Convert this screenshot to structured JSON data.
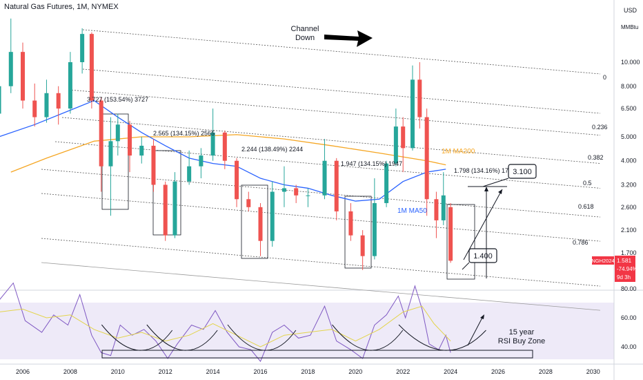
{
  "chart_data": {
    "type": "candlestick",
    "title": "Natural Gas Futures, 1M, NYMEX",
    "ticker": "NGH2024",
    "price_axis": {
      "unit_top": "USD",
      "unit_sub": "MMBtu",
      "scale": "log",
      "ticks": [
        "10.000",
        "8.000",
        "6.500",
        "5.000",
        "4.000",
        "3.200",
        "2.600",
        "2.100",
        "1.700"
      ]
    },
    "time_axis": {
      "ticks": [
        "2006",
        "2008",
        "2010",
        "2012",
        "2014",
        "2016",
        "2018",
        "2020",
        "2022",
        "2024",
        "2026",
        "2028",
        "2030"
      ]
    },
    "rsi_axis": {
      "ticks": [
        "80.00",
        "60.00",
        "40.00"
      ]
    },
    "last_price": {
      "label": "NGH2024",
      "value": "1.581",
      "change": "-74.94%",
      "countdown": "9d 3h",
      "color": "#f23645"
    },
    "fib_levels": [
      {
        "label": "0",
        "price": 8.7
      },
      {
        "label": "0.236",
        "price": 5.45
      },
      {
        "label": "0.382",
        "price": 4.05
      },
      {
        "label": "0.5",
        "price": 3.2
      },
      {
        "label": "0.618",
        "price": 2.62
      },
      {
        "label": "0.786",
        "price": 1.85
      }
    ],
    "annotations": {
      "channel": [
        "Channel",
        "Down"
      ],
      "ma200_label": "1M MA200",
      "ma50_label": "1M MA50",
      "target_label": "3.100",
      "low_label": "1.400",
      "rsi_zone": [
        "15 year",
        "RSI Buy Zone"
      ],
      "moves": [
        "3.727 (153.54%) 3727",
        "2.565 (134.15%) 2565",
        "2.244 (138.49%) 2244",
        "1.947 (134.15%) 1947",
        "1.798 (134.16%) 1798"
      ]
    },
    "colors": {
      "up": "#26a69a",
      "down": "#ef5350",
      "ma200": "#f5a623",
      "ma50": "#2962ff",
      "rsi": "#7e57c2",
      "rsi_ma": "#e3d44b",
      "channel": "#555555"
    },
    "candles": [
      {
        "x": 2005.0,
        "o": 6.2,
        "c": 8.0,
        "h": 9.5,
        "l": 5.8
      },
      {
        "x": 2005.5,
        "o": 8.0,
        "c": 11.0,
        "h": 15.0,
        "l": 7.5
      },
      {
        "x": 2006.0,
        "o": 11.0,
        "c": 7.0,
        "h": 12.0,
        "l": 6.5
      },
      {
        "x": 2006.5,
        "o": 7.0,
        "c": 6.0,
        "h": 8.2,
        "l": 5.5
      },
      {
        "x": 2007.0,
        "o": 6.0,
        "c": 7.5,
        "h": 8.5,
        "l": 5.7
      },
      {
        "x": 2007.5,
        "o": 7.5,
        "c": 6.5,
        "h": 8.0,
        "l": 5.6
      },
      {
        "x": 2008.0,
        "o": 6.5,
        "c": 10.0,
        "h": 11.0,
        "l": 6.2
      },
      {
        "x": 2008.5,
        "o": 10.0,
        "c": 13.0,
        "h": 13.7,
        "l": 9.0
      },
      {
        "x": 2008.9,
        "o": 13.0,
        "c": 7.0,
        "h": 13.2,
        "l": 6.5
      },
      {
        "x": 2009.3,
        "o": 7.0,
        "c": 3.8,
        "h": 7.2,
        "l": 3.0
      },
      {
        "x": 2009.7,
        "o": 3.8,
        "c": 4.8,
        "h": 6.0,
        "l": 2.4
      },
      {
        "x": 2010.0,
        "o": 4.8,
        "c": 5.6,
        "h": 6.2,
        "l": 4.2
      },
      {
        "x": 2010.5,
        "o": 5.6,
        "c": 4.2,
        "h": 5.8,
        "l": 3.6
      },
      {
        "x": 2011.0,
        "o": 4.2,
        "c": 4.6,
        "h": 5.0,
        "l": 3.9
      },
      {
        "x": 2011.5,
        "o": 4.6,
        "c": 3.2,
        "h": 4.9,
        "l": 3.0
      },
      {
        "x": 2012.0,
        "o": 3.2,
        "c": 2.0,
        "h": 3.3,
        "l": 1.9
      },
      {
        "x": 2012.4,
        "o": 2.0,
        "c": 3.3,
        "h": 3.6,
        "l": 1.95
      },
      {
        "x": 2013.0,
        "o": 3.3,
        "c": 3.8,
        "h": 4.4,
        "l": 3.2
      },
      {
        "x": 2013.5,
        "o": 3.8,
        "c": 4.2,
        "h": 4.5,
        "l": 3.4
      },
      {
        "x": 2014.0,
        "o": 4.2,
        "c": 5.2,
        "h": 6.5,
        "l": 4.0
      },
      {
        "x": 2014.5,
        "o": 5.2,
        "c": 4.0,
        "h": 5.3,
        "l": 3.7
      },
      {
        "x": 2015.0,
        "o": 4.0,
        "c": 2.8,
        "h": 4.1,
        "l": 2.6
      },
      {
        "x": 2015.5,
        "o": 2.8,
        "c": 2.6,
        "h": 3.0,
        "l": 2.5
      },
      {
        "x": 2016.0,
        "o": 2.6,
        "c": 1.9,
        "h": 2.7,
        "l": 1.65
      },
      {
        "x": 2016.5,
        "o": 1.9,
        "c": 3.0,
        "h": 3.3,
        "l": 1.8
      },
      {
        "x": 2017.0,
        "o": 3.0,
        "c": 3.1,
        "h": 3.8,
        "l": 2.6
      },
      {
        "x": 2017.5,
        "o": 3.1,
        "c": 2.9,
        "h": 3.2,
        "l": 2.7
      },
      {
        "x": 2018.0,
        "o": 2.9,
        "c": 2.9,
        "h": 3.1,
        "l": 2.6
      },
      {
        "x": 2018.7,
        "o": 2.9,
        "c": 4.0,
        "h": 4.9,
        "l": 2.8
      },
      {
        "x": 2019.2,
        "o": 4.0,
        "c": 2.5,
        "h": 4.1,
        "l": 2.3
      },
      {
        "x": 2019.8,
        "o": 2.5,
        "c": 2.0,
        "h": 2.7,
        "l": 1.9
      },
      {
        "x": 2020.3,
        "o": 2.0,
        "c": 1.65,
        "h": 2.1,
        "l": 1.45
      },
      {
        "x": 2020.8,
        "o": 1.65,
        "c": 2.7,
        "h": 3.4,
        "l": 1.6
      },
      {
        "x": 2021.3,
        "o": 2.7,
        "c": 3.9,
        "h": 4.0,
        "l": 2.6
      },
      {
        "x": 2021.7,
        "o": 3.9,
        "c": 5.5,
        "h": 6.5,
        "l": 3.8
      },
      {
        "x": 2022.0,
        "o": 5.5,
        "c": 4.5,
        "h": 6.0,
        "l": 3.6
      },
      {
        "x": 2022.4,
        "o": 4.5,
        "c": 8.5,
        "h": 9.7,
        "l": 4.4
      },
      {
        "x": 2022.7,
        "o": 8.5,
        "c": 6.0,
        "h": 10.0,
        "l": 5.4
      },
      {
        "x": 2023.0,
        "o": 6.0,
        "c": 2.8,
        "h": 6.5,
        "l": 2.4
      },
      {
        "x": 2023.4,
        "o": 2.8,
        "c": 2.3,
        "h": 3.0,
        "l": 1.95
      },
      {
        "x": 2023.7,
        "o": 2.3,
        "c": 2.9,
        "h": 3.6,
        "l": 2.2
      },
      {
        "x": 2024.0,
        "o": 2.6,
        "c": 1.58,
        "h": 2.7,
        "l": 1.55
      }
    ],
    "ma200": [
      [
        2005.5,
        3.6
      ],
      [
        2007,
        4.1
      ],
      [
        2009,
        4.8
      ],
      [
        2011,
        5.0
      ],
      [
        2013,
        5.0
      ],
      [
        2015,
        5.1
      ],
      [
        2017,
        4.9
      ],
      [
        2019,
        4.6
      ],
      [
        2021,
        4.3
      ],
      [
        2023,
        4.0
      ],
      [
        2023.8,
        3.85
      ]
    ],
    "ma50": [
      [
        2005,
        5.0
      ],
      [
        2006.5,
        5.6
      ],
      [
        2008,
        6.4
      ],
      [
        2009,
        7.0
      ],
      [
        2010,
        6.0
      ],
      [
        2011,
        5.2
      ],
      [
        2012,
        4.6
      ],
      [
        2013,
        4.1
      ],
      [
        2014,
        3.9
      ],
      [
        2015,
        3.8
      ],
      [
        2016,
        3.4
      ],
      [
        2017,
        3.2
      ],
      [
        2018,
        3.1
      ],
      [
        2019,
        2.9
      ],
      [
        2020,
        2.75
      ],
      [
        2021,
        2.8
      ],
      [
        2022,
        3.3
      ],
      [
        2023,
        3.6
      ],
      [
        2023.8,
        3.7
      ]
    ],
    "rsi": [
      [
        2005,
        72
      ],
      [
        2005.6,
        84
      ],
      [
        2006.1,
        58
      ],
      [
        2006.8,
        50
      ],
      [
        2007.3,
        62
      ],
      [
        2007.9,
        55
      ],
      [
        2008.4,
        76
      ],
      [
        2008.9,
        48
      ],
      [
        2009.3,
        36
      ],
      [
        2009.7,
        34
      ],
      [
        2010.1,
        55
      ],
      [
        2010.6,
        48
      ],
      [
        2011.1,
        52
      ],
      [
        2011.6,
        44
      ],
      [
        2012.1,
        32
      ],
      [
        2012.5,
        42
      ],
      [
        2013.1,
        55
      ],
      [
        2013.6,
        52
      ],
      [
        2014.1,
        65
      ],
      [
        2014.6,
        50
      ],
      [
        2015.1,
        40
      ],
      [
        2015.6,
        38
      ],
      [
        2016.0,
        30
      ],
      [
        2016.5,
        50
      ],
      [
        2017.0,
        55
      ],
      [
        2017.6,
        46
      ],
      [
        2018.1,
        48
      ],
      [
        2018.7,
        68
      ],
      [
        2019.2,
        44
      ],
      [
        2019.8,
        38
      ],
      [
        2020.3,
        32
      ],
      [
        2020.8,
        55
      ],
      [
        2021.3,
        62
      ],
      [
        2021.8,
        75
      ],
      [
        2022.1,
        60
      ],
      [
        2022.5,
        82
      ],
      [
        2022.8,
        66
      ],
      [
        2023.1,
        42
      ],
      [
        2023.5,
        38
      ],
      [
        2023.8,
        48
      ],
      [
        2024.0,
        36
      ]
    ],
    "rsi_ma": [
      [
        2005,
        64
      ],
      [
        2006,
        66
      ],
      [
        2007,
        60
      ],
      [
        2008,
        62
      ],
      [
        2009,
        52
      ],
      [
        2010,
        46
      ],
      [
        2011,
        50
      ],
      [
        2012,
        44
      ],
      [
        2013,
        48
      ],
      [
        2014,
        56
      ],
      [
        2015,
        48
      ],
      [
        2016,
        40
      ],
      [
        2017,
        48
      ],
      [
        2018,
        50
      ],
      [
        2019,
        52
      ],
      [
        2020,
        44
      ],
      [
        2021,
        52
      ],
      [
        2022,
        64
      ],
      [
        2022.8,
        68
      ],
      [
        2023.3,
        56
      ],
      [
        2024,
        44
      ]
    ]
  }
}
